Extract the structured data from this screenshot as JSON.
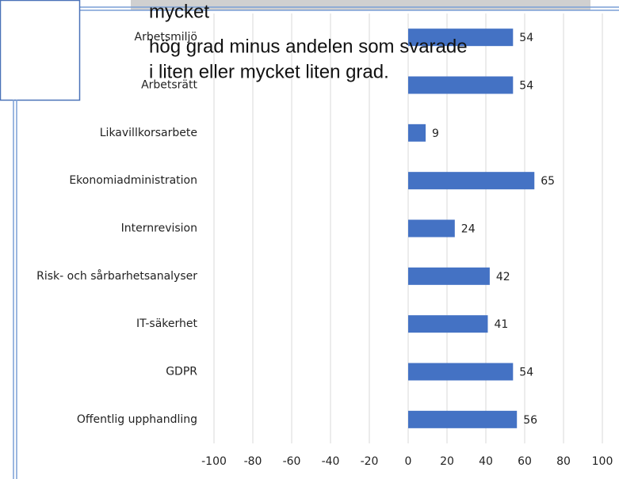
{
  "chart_data": {
    "type": "bar",
    "orientation": "horizontal",
    "categories": [
      "Arbetsmiljö",
      "Arbetsrätt",
      "Likavillkorsarbete",
      "Ekonomiadministration",
      "Internrevision",
      "Risk- och sårbarhetsanalyser",
      "IT-säkerhet",
      "GDPR",
      "Offentlig upphandling"
    ],
    "values": [
      54,
      54,
      9,
      65,
      24,
      42,
      41,
      54,
      56
    ],
    "color": "#4472c4",
    "xlim": [
      -100,
      100
    ],
    "xticks": [
      -100,
      -80,
      -60,
      -40,
      -20,
      0,
      20,
      40,
      60,
      80,
      100
    ],
    "grid": true,
    "annotations": [
      "mycket",
      "hög grad minus andelen som svarade",
      "i liten eller mycket liten grad."
    ]
  }
}
